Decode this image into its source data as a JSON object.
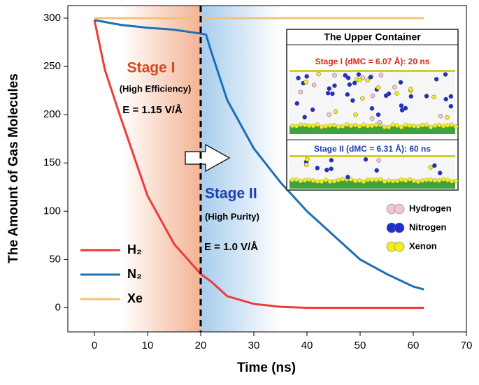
{
  "chart_data": {
    "type": "line",
    "xlabel": "Time (ns)",
    "ylabel": "The Amount of Gas Molecules",
    "x": [
      0,
      2,
      5,
      10,
      15,
      20,
      21,
      22,
      25,
      30,
      35,
      40,
      45,
      50,
      55,
      60,
      62
    ],
    "series": [
      {
        "name": "H₂",
        "color": "#ee3b3b",
        "values": [
          298,
          246,
          196,
          116,
          66,
          35,
          31,
          27,
          12,
          4,
          1,
          0,
          0,
          0,
          0,
          0,
          0
        ]
      },
      {
        "name": "N₂",
        "color": "#1f6fb2",
        "values": [
          298,
          296,
          293,
          290,
          288,
          284,
          283,
          265,
          215,
          165,
          130,
          100,
          75,
          50,
          35,
          22,
          19
        ]
      },
      {
        "name": "Xe",
        "color": "#f0c27a",
        "values": [
          300,
          300,
          300,
          300,
          300,
          300,
          300,
          300,
          300,
          300,
          300,
          300,
          300,
          300,
          300,
          300,
          300
        ]
      }
    ],
    "xlim": [
      -5,
      70
    ],
    "xticks": [
      0,
      10,
      20,
      30,
      40,
      50,
      60,
      70
    ],
    "ylim": [
      -25,
      313
    ],
    "yticks": [
      0,
      50,
      100,
      150,
      200,
      250,
      300
    ],
    "legend": "lower left",
    "vline": 20,
    "regions": [
      {
        "start": 5,
        "end": 20,
        "color": "#e8743b",
        "fade": "left"
      },
      {
        "start": 20,
        "end": 35,
        "color": "#3d8fd6",
        "fade": "right"
      }
    ],
    "annotations": [
      {
        "text": "Stage I",
        "color": "#d5471c"
      },
      {
        "text": "(High Efficiency)",
        "color": "#000000"
      },
      {
        "text": "E = 1.15 V/Å",
        "color": "#000000"
      },
      {
        "text": "Stage II",
        "color": "#1f3fae"
      },
      {
        "text": "(High Purity)",
        "color": "#000000"
      },
      {
        "text": "E = 1.0 V/Å",
        "color": "#000000"
      }
    ],
    "inset": {
      "title": "The Upper Container",
      "panels": [
        {
          "label": "Stage I (dMC = 6.07 Å): 20 ns",
          "color": "#d5271c"
        },
        {
          "label": "Stage II (dMC = 6.31 Å): 60 ns",
          "color": "#1f3fae"
        }
      ]
    },
    "molecules": [
      {
        "name": "Hydrogen",
        "color": "#f1c6d2"
      },
      {
        "name": "Nitrogen",
        "color": "#1f2fd0"
      },
      {
        "name": "Xenon",
        "color": "#f1ee1a"
      }
    ]
  }
}
